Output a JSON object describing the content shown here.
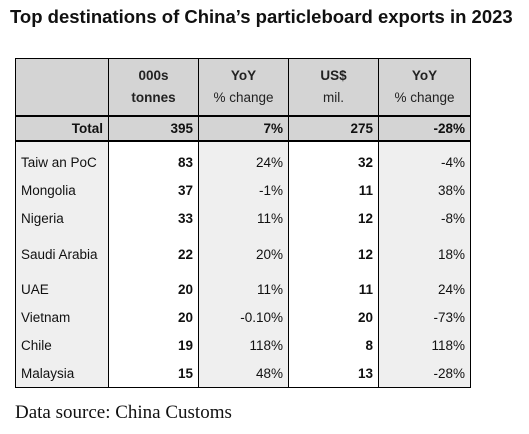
{
  "title": "Top destinations of China’s particleboard exports in 2023",
  "header": {
    "col1_line1": "000s",
    "col1_line2": "tonnes",
    "col2_line1": "YoY",
    "col2_line2": "% change",
    "col3_line1": "US$",
    "col3_line2": "mil.",
    "col4_line1": "YoY",
    "col4_line2": "% change"
  },
  "total": {
    "label": "Total",
    "tonnes": "395",
    "tonnes_yoy": "7%",
    "usd": "275",
    "usd_yoy": "-28%"
  },
  "rows": [
    {
      "name": "Taiw an PoC",
      "tonnes": "83",
      "tonnes_yoy": "24%",
      "usd": "32",
      "usd_yoy": "-4%"
    },
    {
      "name": "Mongolia",
      "tonnes": "37",
      "tonnes_yoy": "-1%",
      "usd": "11",
      "usd_yoy": "38%"
    },
    {
      "name": "Nigeria",
      "tonnes": "33",
      "tonnes_yoy": "11%",
      "usd": "12",
      "usd_yoy": "-8%"
    },
    {
      "name": "Saudi Arabia",
      "tonnes": "22",
      "tonnes_yoy": "20%",
      "usd": "12",
      "usd_yoy": "18%"
    },
    {
      "name": "UAE",
      "tonnes": "20",
      "tonnes_yoy": "11%",
      "usd": "11",
      "usd_yoy": "24%"
    },
    {
      "name": "Vietnam",
      "tonnes": "20",
      "tonnes_yoy": "-0.10%",
      "usd": "20",
      "usd_yoy": "-73%"
    },
    {
      "name": "Chile",
      "tonnes": "19",
      "tonnes_yoy": "118%",
      "usd": "8",
      "usd_yoy": "118%"
    },
    {
      "name": "Malaysia",
      "tonnes": "15",
      "tonnes_yoy": "48%",
      "usd": "13",
      "usd_yoy": "-28%"
    }
  ],
  "source": "Data source: China Customs"
}
